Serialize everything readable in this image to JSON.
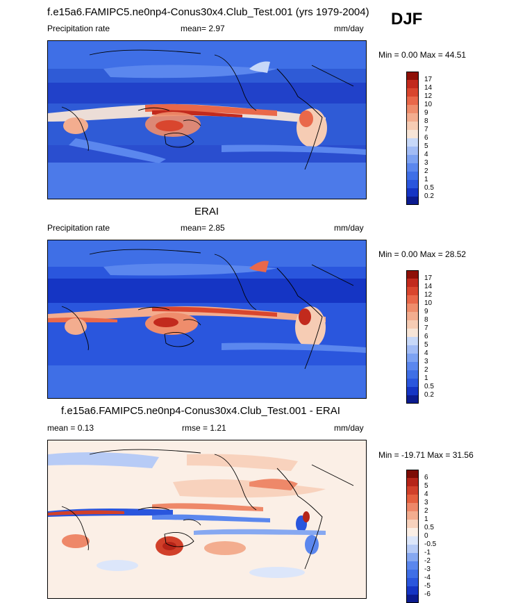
{
  "season": "DJF",
  "colors": {
    "precip": [
      "#0b1b8f",
      "#1535c4",
      "#2a56dd",
      "#3f6fe6",
      "#5b87ee",
      "#7da2f2",
      "#a2bcf5",
      "#c7d8f8",
      "#f7e5d7",
      "#f6ccb4",
      "#f3ad8f",
      "#ef8d6c",
      "#e9684a",
      "#d9462e",
      "#c22a1d",
      "#8e1008"
    ],
    "diff": [
      "#0b1b8f",
      "#1535c4",
      "#2a56dd",
      "#3f6fe6",
      "#5b87ee",
      "#86a8f1",
      "#b7cbf6",
      "#dce6fa",
      "#fbefe6",
      "#f8d2bd",
      "#f3ad8f",
      "#ee8869",
      "#e5603f",
      "#d1402a",
      "#b52418",
      "#7d0c05"
    ]
  },
  "chart_data": [
    {
      "type": "heatmap",
      "title": "f.e15a6.FAMIPC5.ne0np4-Conus30x4.Club_Test.001 (yrs 1979-2004)",
      "left_label": "Precipitation rate",
      "mean_text": "mean=  2.97",
      "units": "mm/day",
      "minmax_text": "Min =   0.00 Max =  44.51",
      "colorbar_levels": [
        "0.2",
        "0.5",
        "1",
        "2",
        "3",
        "4",
        "5",
        "6",
        "7",
        "8",
        "9",
        "10",
        "12",
        "14",
        "17"
      ]
    },
    {
      "type": "heatmap",
      "title": "ERAI",
      "left_label": "Precipitation rate",
      "mean_text": "mean=  2.85",
      "units": "mm/day",
      "minmax_text": "Min =   0.00 Max =  28.52",
      "colorbar_levels": [
        "0.2",
        "0.5",
        "1",
        "2",
        "3",
        "4",
        "5",
        "6",
        "7",
        "8",
        "9",
        "10",
        "12",
        "14",
        "17"
      ]
    },
    {
      "type": "heatmap",
      "title": "f.e15a6.FAMIPC5.ne0np4-Conus30x4.Club_Test.001 - ERAI",
      "left_label": "mean =   0.13",
      "mean_text": "rmse =   1.21",
      "units": "mm/day",
      "minmax_text": "Min = -19.71 Max =  31.56",
      "colorbar_levels": [
        "-6",
        "-5",
        "-4",
        "-3",
        "-2",
        "-1",
        "-0.5",
        "0",
        "0.5",
        "1",
        "2",
        "3",
        "4",
        "5",
        "6"
      ]
    }
  ]
}
